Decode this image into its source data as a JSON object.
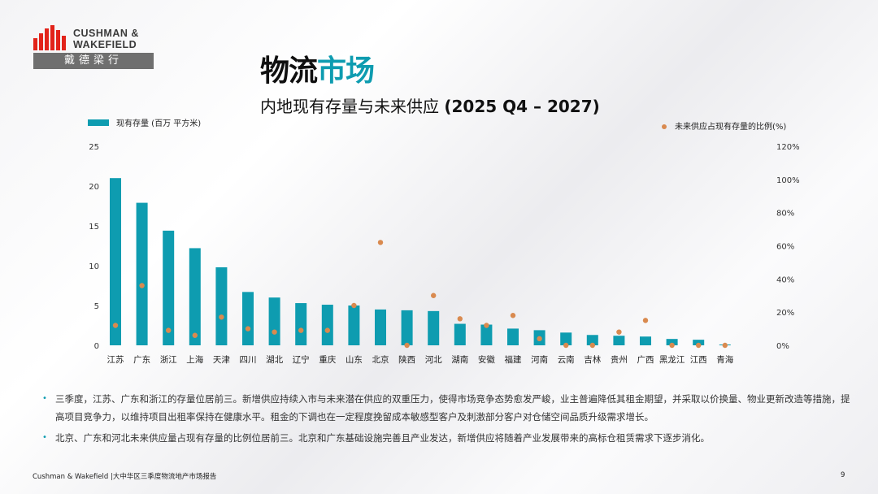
{
  "brand": {
    "name_line1": "CUSHMAN &",
    "name_line2": "WAKEFIELD",
    "cn_name": "戴德梁行",
    "colors": {
      "logo_red": "#e2231a",
      "accent": "#0e9cb0",
      "dot": "#d98a4f"
    }
  },
  "header": {
    "title_part1": "物流",
    "title_part2": "市场",
    "subtitle_main": "内地现有存量与未来供应",
    "subtitle_paren": "(2025 Q4 – 2027)"
  },
  "chart_data": {
    "type": "bar",
    "categories": [
      "江苏",
      "广东",
      "浙江",
      "上海",
      "天津",
      "四川",
      "湖北",
      "辽宁",
      "重庆",
      "山东",
      "北京",
      "陕西",
      "河北",
      "湖南",
      "安徽",
      "福建",
      "河南",
      "云南",
      "吉林",
      "贵州",
      "广西",
      "黑龙江",
      "江西",
      "青海"
    ],
    "series": [
      {
        "name": "现有存量 (百万 平方米)",
        "type": "bar",
        "axis": "left",
        "color": "#0e9cb0",
        "values": [
          21.0,
          17.9,
          14.4,
          12.2,
          9.8,
          6.7,
          6.0,
          5.3,
          5.1,
          5.0,
          4.5,
          4.4,
          4.3,
          2.7,
          2.6,
          2.1,
          1.9,
          1.6,
          1.3,
          1.2,
          1.1,
          0.8,
          0.7,
          0.1
        ]
      },
      {
        "name": "未来供应占现有存量的比例(%)",
        "type": "scatter",
        "axis": "right",
        "color": "#d98a4f",
        "values": [
          12,
          36,
          9,
          6,
          17,
          10,
          8,
          9,
          9,
          24,
          62,
          0,
          30,
          16,
          12,
          18,
          4,
          0,
          0,
          8,
          15,
          0,
          0,
          0
        ]
      }
    ],
    "left_axis": {
      "ylim": [
        0,
        25
      ],
      "ticks": [
        "0",
        "5",
        "10",
        "15",
        "20",
        "25"
      ]
    },
    "right_axis": {
      "ylim": [
        0,
        120
      ],
      "ticks": [
        "0%",
        "20%",
        "40%",
        "60%",
        "80%",
        "100%",
        "120%"
      ]
    },
    "legend_placement": "top",
    "grid": false
  },
  "bullets": [
    "三季度，江苏、广东和浙江的存量位居前三。新增供应持续入市与未来潜在供应的双重压力，使得市场竞争态势愈发严峻，业主普遍降低其租金期望，并采取以价换量、物业更新改造等措施，提高项目竞争力，以维持项目出租率保持在健康水平。租金的下调也在一定程度挽留成本敏感型客户及刺激部分客户对仓储空间品质升级需求增长。",
    "北京、广东和河北未来供应量占现有存量的比例位居前三。北京和广东基础设施完善且产业发达，新增供应将随着产业发展带来的高标仓租赁需求下逐步消化。"
  ],
  "footer": {
    "text": "Cushman & Wakefield |大中华区三季度物流地产市场报告",
    "page": "9"
  }
}
